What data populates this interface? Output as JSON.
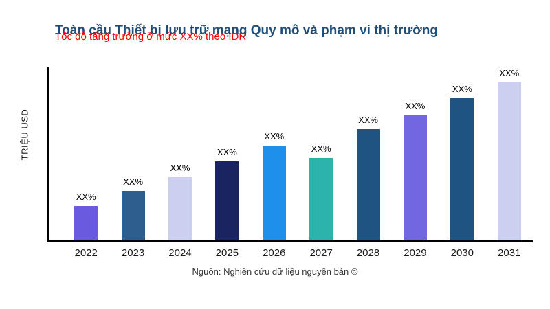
{
  "chart": {
    "title": "Toàn cầu Thiết bị lưu trữ mạng Quy mô và phạm vi thị trường",
    "ylabel": "TRIỆU USD",
    "annotation": "Tốc độ tăng trưởng ở mức XX% theo IDR",
    "source": "Nguồn: Nghiên cứu dữ liệu nguyên bản ©"
  },
  "colors": {
    "title": "#1F4E79",
    "annotation": "#FF0000",
    "axis": "#000000"
  },
  "chart_data": {
    "type": "bar",
    "title": "Toàn cầu Thiết bị lưu trữ mạng Quy mô và phạm vi thị trường",
    "xlabel": "",
    "ylabel": "TRIỆU USD",
    "categories": [
      "2022",
      "2023",
      "2024",
      "2025",
      "2026",
      "2027",
      "2028",
      "2029",
      "2030",
      "2031"
    ],
    "values": [
      50,
      72,
      92,
      115,
      138,
      120,
      162,
      182,
      207,
      230
    ],
    "values_note": "numeric values not printed on chart; bars labeled XX%, heights estimated relative units",
    "bar_labels": [
      "XX%",
      "XX%",
      "XX%",
      "XX%",
      "XX%",
      "XX%",
      "XX%",
      "XX%",
      "XX%",
      "XX%"
    ],
    "bar_colors": [
      "#6A5AE0",
      "#2E5E8E",
      "#CBD0F0",
      "#1A2560",
      "#1E8FEA",
      "#2BB3AC",
      "#1F5380",
      "#7367E0",
      "#1F5380",
      "#CBD0F0"
    ],
    "annotation": "Tốc độ tăng trưởng ở mức XX% theo IDR",
    "ylim": [
      0,
      250
    ],
    "grid": false,
    "legend": "none"
  }
}
